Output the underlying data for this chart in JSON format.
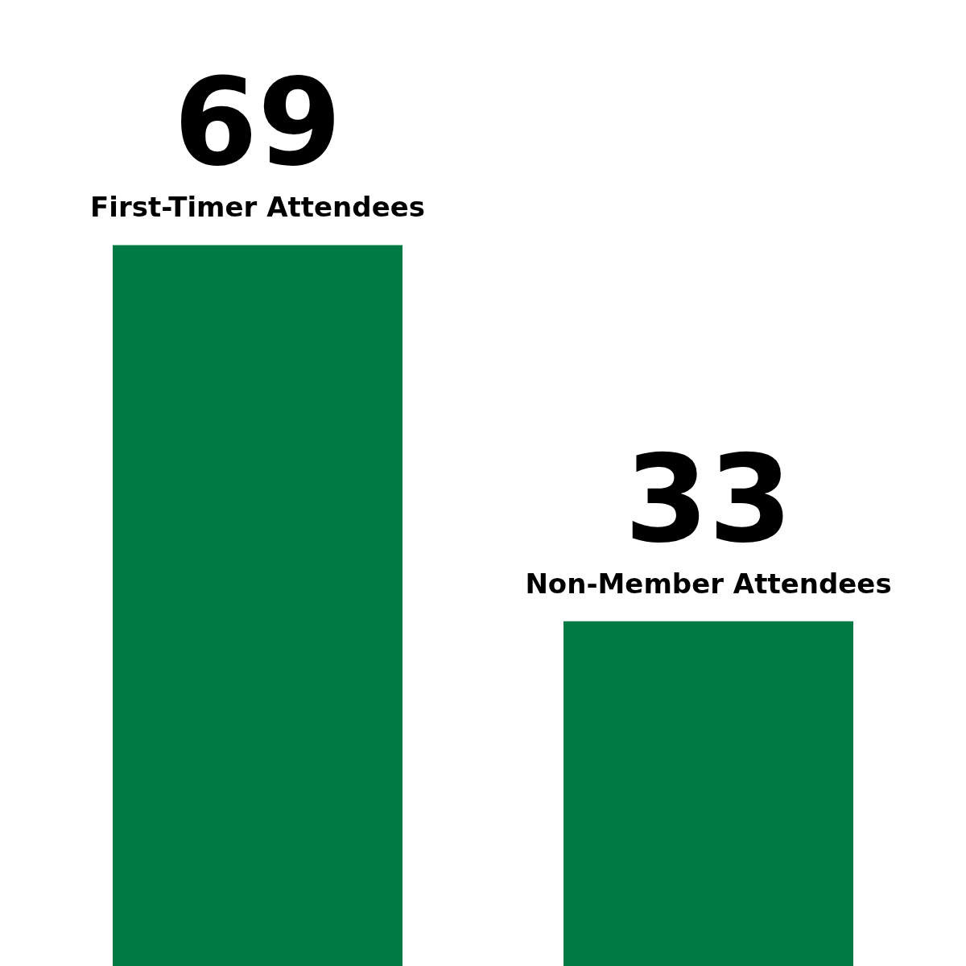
{
  "chart_data": {
    "type": "bar",
    "categories": [
      "First-Timer Attendees",
      "Non-Member Attendees"
    ],
    "values": [
      69,
      33
    ],
    "color": "#007a45",
    "data_labels": true,
    "tick_labels": false
  }
}
